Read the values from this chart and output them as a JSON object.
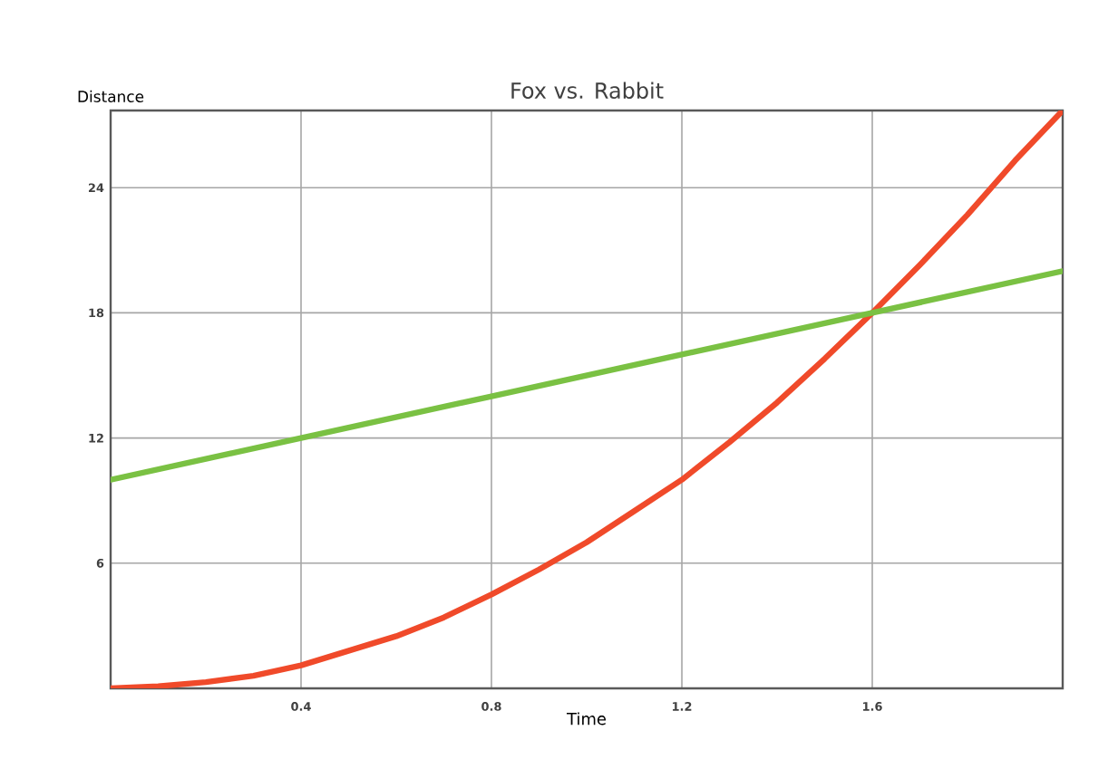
{
  "chart_data": {
    "type": "line",
    "title": "Fox vs. Rabbit",
    "xlabel": "Time",
    "ylabel": "Distance",
    "xlim": [
      0,
      2
    ],
    "ylim": [
      0,
      27.7
    ],
    "xticks": [
      0.4,
      0.8,
      1.2,
      1.6
    ],
    "yticks": [
      6,
      12,
      18,
      24
    ],
    "grid": true,
    "marker": "none",
    "line_style": "solid",
    "series": [
      {
        "color": "#f04a2a",
        "x": [
          0,
          0.1,
          0.2,
          0.3,
          0.4,
          0.5,
          0.6,
          0.7,
          0.8,
          0.9,
          1.0,
          1.1,
          1.2,
          1.3,
          1.4,
          1.5,
          1.6,
          1.7,
          1.8,
          1.9,
          2.0
        ],
        "values": [
          0,
          0.1,
          0.3,
          0.6,
          1.1,
          1.8,
          2.5,
          3.4,
          4.5,
          5.7,
          7,
          8.5,
          10,
          11.8,
          13.7,
          15.8,
          18,
          20.3,
          22.7,
          25.3,
          27.7
        ]
      },
      {
        "color": "#7ac143",
        "x": [
          0,
          0.4,
          0.8,
          1.2,
          1.6,
          2.0
        ],
        "values": [
          10,
          12,
          14,
          16,
          18,
          20
        ]
      }
    ]
  }
}
